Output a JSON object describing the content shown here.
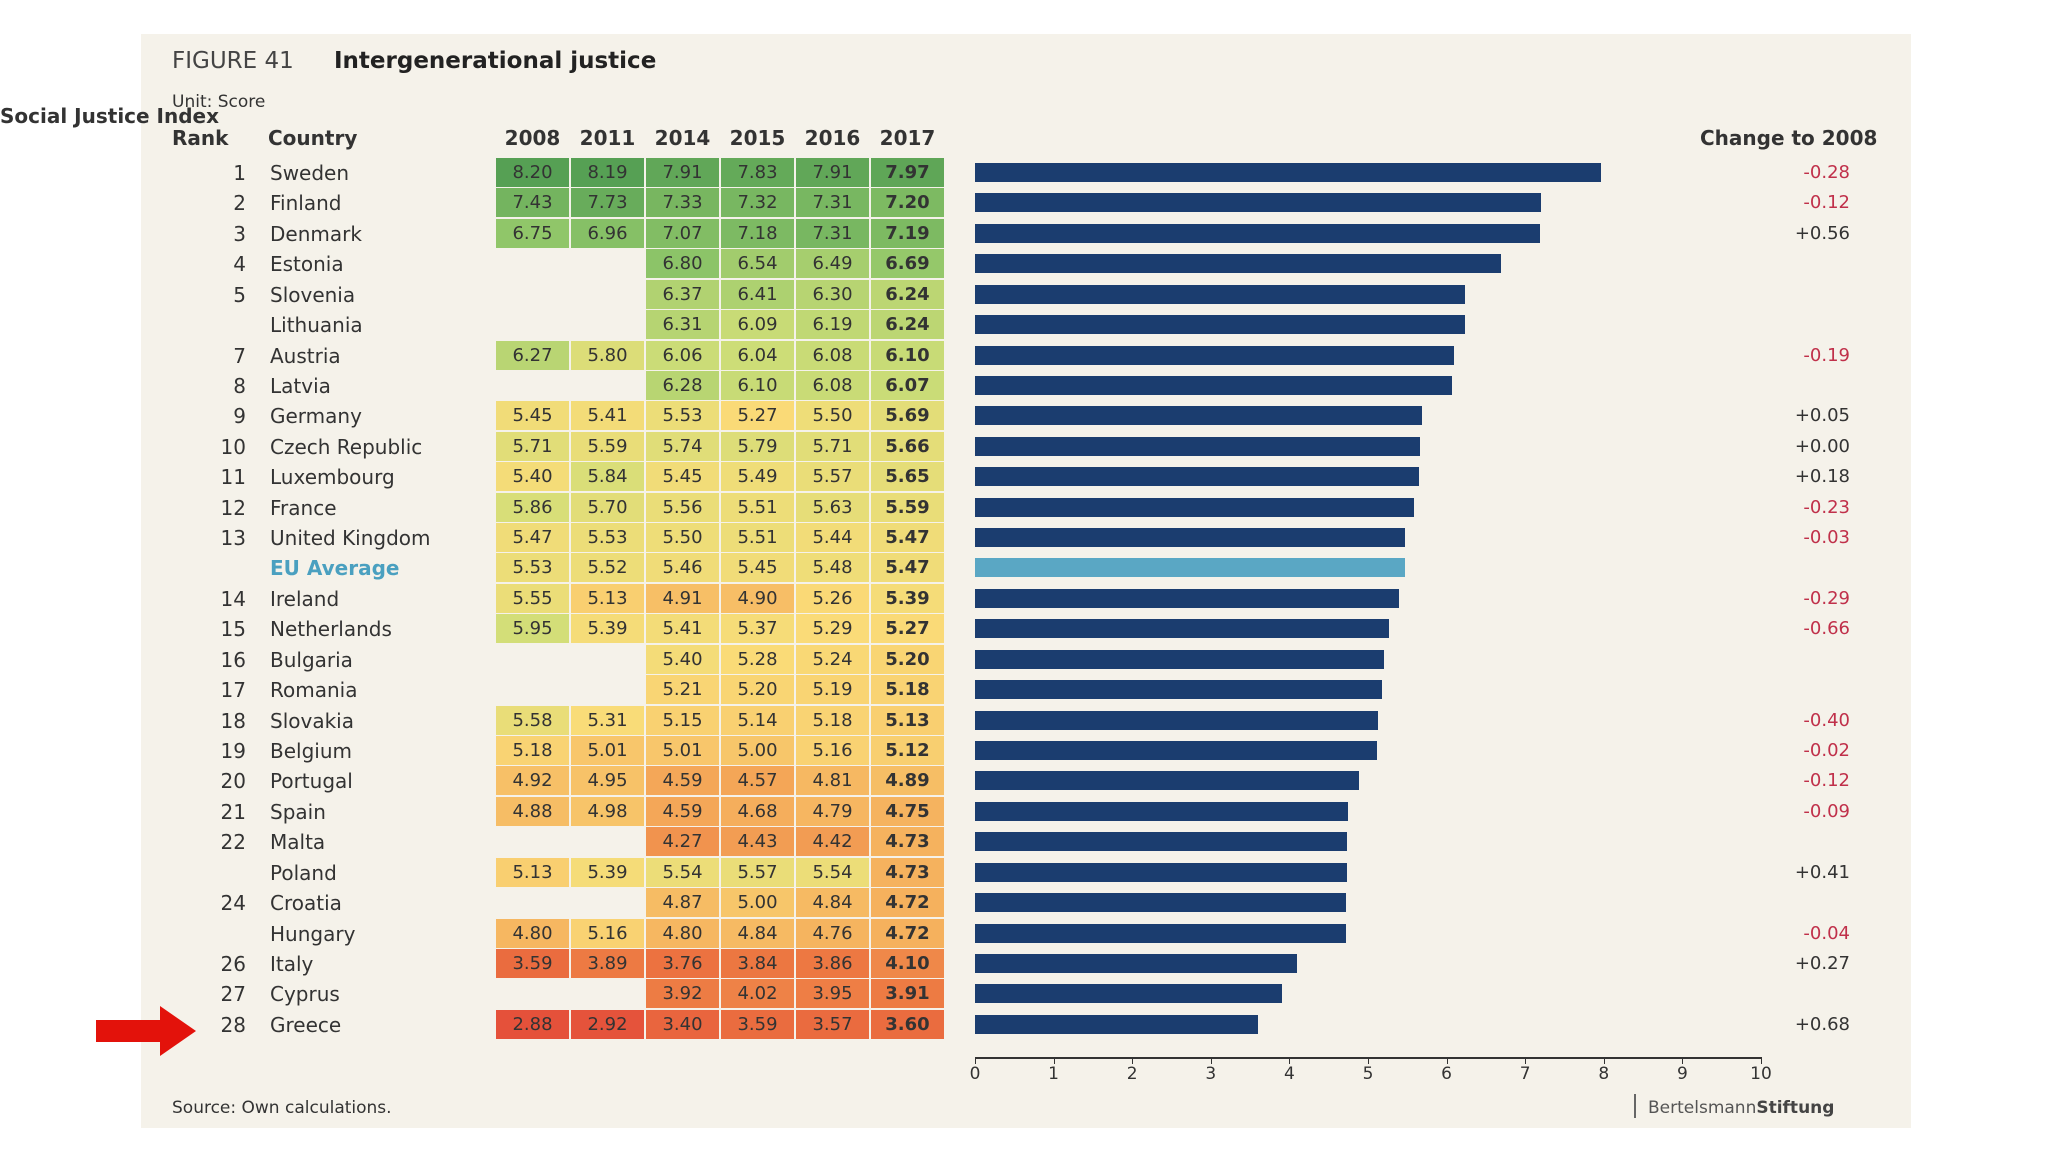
{
  "figure_label": "FIGURE 41",
  "title": "Intergenerational justice",
  "unit": "Unit: Score",
  "index_header": "Social Justice Index",
  "headers": {
    "rank": "Rank",
    "country": "Country",
    "change": "Change to 2008"
  },
  "source": "Source: Own calculations.",
  "brand": {
    "part1": "Bertelsmann",
    "part2": "Stiftung"
  },
  "colors": {
    "bar": "#1b3d6f",
    "eu_bar": "#5aa7c4",
    "eu_text": "#4aa0c0",
    "negative": "#c0304a",
    "positive": "#333333",
    "arrow": "#e3120b"
  },
  "chart_data": {
    "type": "bar",
    "orientation": "horizontal",
    "title": "Intergenerational justice",
    "unit": "Score",
    "years": [
      "2008",
      "2011",
      "2014",
      "2015",
      "2016",
      "2017"
    ],
    "bar_series": "2017",
    "xlim": [
      0,
      10
    ],
    "xticks": [
      0,
      1,
      2,
      3,
      4,
      5,
      6,
      7,
      8,
      9,
      10
    ],
    "highlight": "Greece",
    "rows": [
      {
        "rank": "1",
        "country": "Sweden",
        "scores": [
          8.2,
          8.19,
          7.91,
          7.83,
          7.91,
          7.97
        ],
        "change": "-0.28"
      },
      {
        "rank": "2",
        "country": "Finland",
        "scores": [
          7.43,
          7.73,
          7.33,
          7.32,
          7.31,
          7.2
        ],
        "change": "-0.12"
      },
      {
        "rank": "3",
        "country": "Denmark",
        "scores": [
          6.75,
          6.96,
          7.07,
          7.18,
          7.31,
          7.19
        ],
        "change": "+0.56"
      },
      {
        "rank": "4",
        "country": "Estonia",
        "scores": [
          null,
          null,
          6.8,
          6.54,
          6.49,
          6.69
        ],
        "change": ""
      },
      {
        "rank": "5",
        "country": "Slovenia",
        "scores": [
          null,
          null,
          6.37,
          6.41,
          6.3,
          6.24
        ],
        "change": ""
      },
      {
        "rank": "",
        "country": "Lithuania",
        "scores": [
          null,
          null,
          6.31,
          6.09,
          6.19,
          6.24
        ],
        "change": ""
      },
      {
        "rank": "7",
        "country": "Austria",
        "scores": [
          6.27,
          5.8,
          6.06,
          6.04,
          6.08,
          6.1
        ],
        "change": "-0.19"
      },
      {
        "rank": "8",
        "country": "Latvia",
        "scores": [
          null,
          null,
          6.28,
          6.1,
          6.08,
          6.07
        ],
        "change": ""
      },
      {
        "rank": "9",
        "country": "Germany",
        "scores": [
          5.45,
          5.41,
          5.53,
          5.27,
          5.5,
          5.69
        ],
        "change": "+0.05"
      },
      {
        "rank": "10",
        "country": "Czech Republic",
        "scores": [
          5.71,
          5.59,
          5.74,
          5.79,
          5.71,
          5.66
        ],
        "change": "+0.00"
      },
      {
        "rank": "11",
        "country": "Luxembourg",
        "scores": [
          5.4,
          5.84,
          5.45,
          5.49,
          5.57,
          5.65
        ],
        "change": "+0.18"
      },
      {
        "rank": "12",
        "country": "France",
        "scores": [
          5.86,
          5.7,
          5.56,
          5.51,
          5.63,
          5.59
        ],
        "change": "-0.23"
      },
      {
        "rank": "13",
        "country": "United Kingdom",
        "scores": [
          5.47,
          5.53,
          5.5,
          5.51,
          5.44,
          5.47
        ],
        "change": "-0.03"
      },
      {
        "rank": "",
        "country": "EU Average",
        "eu": true,
        "scores": [
          5.53,
          5.52,
          5.46,
          5.45,
          5.48,
          5.47
        ],
        "change": ""
      },
      {
        "rank": "14",
        "country": "Ireland",
        "scores": [
          5.55,
          5.13,
          4.91,
          4.9,
          5.26,
          5.39
        ],
        "change": "-0.29"
      },
      {
        "rank": "15",
        "country": "Netherlands",
        "scores": [
          5.95,
          5.39,
          5.41,
          5.37,
          5.29,
          5.27
        ],
        "change": "-0.66"
      },
      {
        "rank": "16",
        "country": "Bulgaria",
        "scores": [
          null,
          null,
          5.4,
          5.28,
          5.24,
          5.2
        ],
        "change": ""
      },
      {
        "rank": "17",
        "country": "Romania",
        "scores": [
          null,
          null,
          5.21,
          5.2,
          5.19,
          5.18
        ],
        "change": ""
      },
      {
        "rank": "18",
        "country": "Slovakia",
        "scores": [
          5.58,
          5.31,
          5.15,
          5.14,
          5.18,
          5.13
        ],
        "change": "-0.40"
      },
      {
        "rank": "19",
        "country": "Belgium",
        "scores": [
          5.18,
          5.01,
          5.01,
          5.0,
          5.16,
          5.12
        ],
        "change": "-0.02"
      },
      {
        "rank": "20",
        "country": "Portugal",
        "scores": [
          4.92,
          4.95,
          4.59,
          4.57,
          4.81,
          4.89
        ],
        "change": "-0.12"
      },
      {
        "rank": "21",
        "country": "Spain",
        "scores": [
          4.88,
          4.98,
          4.59,
          4.68,
          4.79,
          4.75
        ],
        "change": "-0.09"
      },
      {
        "rank": "22",
        "country": "Malta",
        "scores": [
          null,
          null,
          4.27,
          4.43,
          4.42,
          4.73
        ],
        "change": ""
      },
      {
        "rank": "",
        "country": "Poland",
        "scores": [
          5.13,
          5.39,
          5.54,
          5.57,
          5.54,
          4.73
        ],
        "change": "+0.41"
      },
      {
        "rank": "24",
        "country": "Croatia",
        "scores": [
          null,
          null,
          4.87,
          5.0,
          4.84,
          4.72
        ],
        "change": ""
      },
      {
        "rank": "",
        "country": "Hungary",
        "scores": [
          4.8,
          5.16,
          4.8,
          4.84,
          4.76,
          4.72
        ],
        "change": "-0.04"
      },
      {
        "rank": "26",
        "country": "Italy",
        "scores": [
          3.59,
          3.89,
          3.76,
          3.84,
          3.86,
          4.1
        ],
        "change": "+0.27"
      },
      {
        "rank": "27",
        "country": "Cyprus",
        "scores": [
          null,
          null,
          3.92,
          4.02,
          3.95,
          3.91
        ],
        "change": ""
      },
      {
        "rank": "28",
        "country": "Greece",
        "scores": [
          2.88,
          2.92,
          3.4,
          3.59,
          3.57,
          3.6
        ],
        "change": "+0.68"
      }
    ]
  }
}
